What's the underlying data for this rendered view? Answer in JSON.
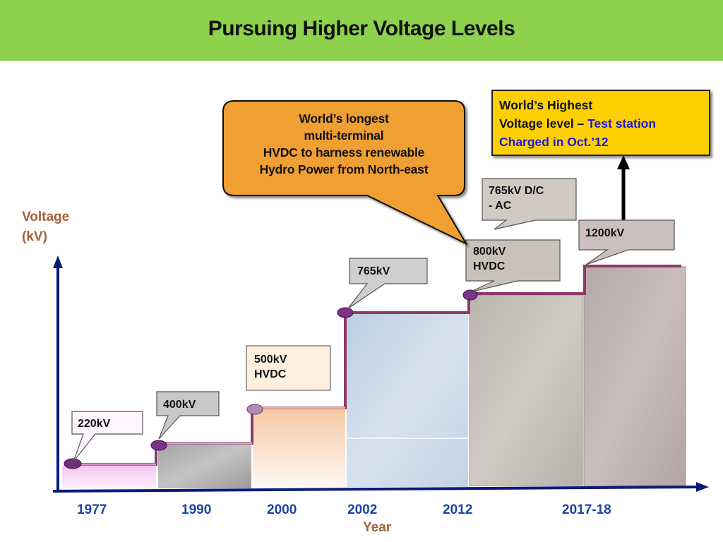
{
  "title": "Pursuing Higher Voltage Levels",
  "y_axis_label_line1": "Voltage",
  "y_axis_label_line2": "(kV)",
  "x_axis_label": "Year",
  "years": [
    "1977",
    "1990",
    "2000",
    "2002",
    "2012",
    "2017-18"
  ],
  "callouts": {
    "kv220": "220kV",
    "kv400": "400kV",
    "kv500_line1": "500kV",
    "kv500_line2": "HVDC",
    "kv765": "765kV",
    "kv800_line1": "800kV",
    "kv800_line2": "HVDC",
    "kv765dc_line1": "765kV D/C",
    "kv765dc_line2": "- AC",
    "kv1200": "1200kV"
  },
  "hvdc_callout": {
    "line1": "World’s longest",
    "line2": "multi-terminal",
    "line3": "HVDC to harness renewable",
    "line4": "Hydro Power from North-east"
  },
  "highest_callout": {
    "line1": "World’s Highest",
    "line2_prefix": "Voltage level – ",
    "line2_highlight": "Test station",
    "line3": "Charged in Oct.’12"
  },
  "colors": {
    "title_bar": "#8ed14d",
    "step_line": "#8b3a6b",
    "axis": "#0b1a7a",
    "axis_label": "#a5603b",
    "year_label": "#1a44a8",
    "orange_callout": "#f0a030",
    "yellow_callout": "#ffd000",
    "highlight_text": "#1a1ae0"
  }
}
